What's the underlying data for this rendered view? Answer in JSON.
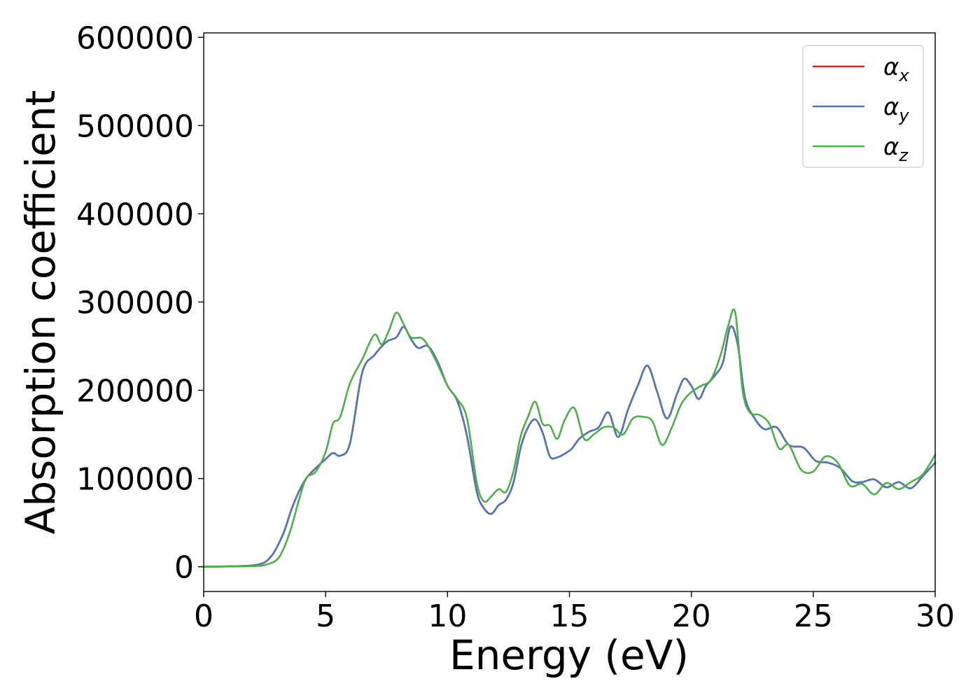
{
  "chart_data": {
    "type": "line",
    "title": "",
    "xlabel": "Energy (eV)",
    "ylabel": "Absorption coefficient",
    "xlim": [
      0,
      30
    ],
    "ylim": [
      -28000,
      605000
    ],
    "xticks": [
      0,
      5,
      10,
      15,
      20,
      25,
      30
    ],
    "xtick_labels": [
      "0",
      "5",
      "10",
      "15",
      "20",
      "25",
      "30"
    ],
    "yticks": [
      0,
      100000,
      200000,
      300000,
      400000,
      500000,
      600000
    ],
    "ytick_labels": [
      "0",
      "100000",
      "200000",
      "300000",
      "400000",
      "500000",
      "600000"
    ],
    "grid": false,
    "legend_position": "top-right",
    "series": [
      {
        "name": "αx",
        "symbol": "α",
        "subscript": "x",
        "color": "#e41a1c",
        "x": [
          0,
          1,
          2,
          2.5,
          2.8,
          3.0,
          3.3,
          3.6,
          3.9,
          4.2,
          4.6,
          5.0,
          5.3,
          5.6,
          6.0,
          6.5,
          7.0,
          7.5,
          7.9,
          8.2,
          8.5,
          8.8,
          9.2,
          9.6,
          10.0,
          10.4,
          10.8,
          11.2,
          11.5,
          11.8,
          12.1,
          12.4,
          12.7,
          13.0,
          13.3,
          13.6,
          13.9,
          14.2,
          14.5,
          14.8,
          15.1,
          15.4,
          15.8,
          16.2,
          16.6,
          17.0,
          17.4,
          17.8,
          18.2,
          18.6,
          19.0,
          19.4,
          19.7,
          20.0,
          20.3,
          20.6,
          21.0,
          21.3,
          21.6,
          21.9,
          22.2,
          22.6,
          23.0,
          23.5,
          24.0,
          24.6,
          25.1,
          25.6,
          26.1,
          26.6,
          27.0,
          27.5,
          28.0,
          28.5,
          29.0,
          29.5,
          30.0
        ],
        "y": [
          0,
          500,
          1500,
          5000,
          13000,
          22000,
          40000,
          65000,
          85000,
          100000,
          112000,
          122000,
          129000,
          126000,
          140000,
          220000,
          240000,
          255000,
          260000,
          272000,
          258000,
          248000,
          250000,
          232000,
          205000,
          188000,
          148000,
          85000,
          66000,
          60000,
          70000,
          76000,
          95000,
          135000,
          158000,
          167000,
          152000,
          125000,
          124000,
          128000,
          134000,
          145000,
          153000,
          158000,
          175000,
          147000,
          178000,
          205000,
          228000,
          198000,
          168000,
          195000,
          213000,
          205000,
          190000,
          205000,
          218000,
          232000,
          272000,
          252000,
          192000,
          168000,
          156000,
          158000,
          138000,
          135000,
          120000,
          118000,
          112000,
          97000,
          96000,
          99000,
          90000,
          96000,
          89000,
          103000,
          118000
        ]
      },
      {
        "name": "αy",
        "symbol": "α",
        "subscript": "y",
        "color": "#4a78b8",
        "x": [
          0,
          1,
          2,
          2.5,
          2.8,
          3.0,
          3.3,
          3.6,
          3.9,
          4.2,
          4.6,
          5.0,
          5.3,
          5.6,
          6.0,
          6.5,
          7.0,
          7.5,
          7.9,
          8.2,
          8.5,
          8.8,
          9.2,
          9.6,
          10.0,
          10.4,
          10.8,
          11.2,
          11.5,
          11.8,
          12.1,
          12.4,
          12.7,
          13.0,
          13.3,
          13.6,
          13.9,
          14.2,
          14.5,
          14.8,
          15.1,
          15.4,
          15.8,
          16.2,
          16.6,
          17.0,
          17.4,
          17.8,
          18.2,
          18.6,
          19.0,
          19.4,
          19.7,
          20.0,
          20.3,
          20.6,
          21.0,
          21.3,
          21.6,
          21.9,
          22.2,
          22.6,
          23.0,
          23.5,
          24.0,
          24.6,
          25.1,
          25.6,
          26.1,
          26.6,
          27.0,
          27.5,
          28.0,
          28.5,
          29.0,
          29.5,
          30.0
        ],
        "y": [
          0,
          500,
          1500,
          5000,
          13000,
          22000,
          40000,
          65000,
          85000,
          100000,
          112000,
          122000,
          129000,
          126000,
          140000,
          220000,
          240000,
          255000,
          260000,
          272000,
          258000,
          248000,
          250000,
          232000,
          205000,
          188000,
          148000,
          85000,
          66000,
          60000,
          70000,
          76000,
          95000,
          135000,
          158000,
          167000,
          152000,
          125000,
          124000,
          128000,
          134000,
          145000,
          153000,
          158000,
          175000,
          147000,
          178000,
          205000,
          228000,
          198000,
          168000,
          195000,
          213000,
          205000,
          190000,
          205000,
          218000,
          232000,
          272000,
          252000,
          192000,
          168000,
          156000,
          158000,
          138000,
          135000,
          120000,
          118000,
          112000,
          97000,
          96000,
          99000,
          90000,
          96000,
          89000,
          103000,
          118000
        ]
      },
      {
        "name": "αz",
        "symbol": "α",
        "subscript": "z",
        "color": "#4daf4a",
        "x": [
          0,
          1,
          2,
          2.5,
          3.0,
          3.3,
          3.6,
          3.9,
          4.2,
          4.6,
          5.0,
          5.3,
          5.6,
          6.0,
          6.5,
          7.0,
          7.3,
          7.6,
          7.9,
          8.2,
          8.5,
          9.0,
          9.5,
          10.0,
          10.4,
          10.8,
          11.2,
          11.5,
          11.8,
          12.1,
          12.4,
          12.7,
          13.0,
          13.3,
          13.6,
          13.9,
          14.2,
          14.5,
          14.8,
          15.2,
          15.6,
          16.0,
          16.4,
          16.8,
          17.2,
          17.6,
          18.0,
          18.4,
          18.8,
          19.2,
          19.6,
          20.0,
          20.4,
          20.8,
          21.2,
          21.5,
          21.8,
          22.1,
          22.4,
          22.8,
          23.2,
          23.6,
          24.0,
          24.5,
          25.0,
          25.5,
          26.0,
          26.5,
          27.0,
          27.5,
          28.0,
          28.5,
          29.0,
          29.5,
          30.0
        ],
        "y": [
          0,
          300,
          800,
          2000,
          8000,
          22000,
          45000,
          75000,
          100000,
          108000,
          130000,
          162000,
          170000,
          208000,
          235000,
          263000,
          252000,
          268000,
          288000,
          275000,
          260000,
          258000,
          235000,
          205000,
          190000,
          168000,
          95000,
          74000,
          80000,
          88000,
          85000,
          108000,
          148000,
          170000,
          187000,
          162000,
          160000,
          145000,
          166000,
          180000,
          145000,
          150000,
          158000,
          158000,
          150000,
          168000,
          170000,
          165000,
          138000,
          158000,
          185000,
          198000,
          205000,
          212000,
          240000,
          272000,
          288000,
          200000,
          175000,
          172000,
          162000,
          134000,
          138000,
          110000,
          108000,
          125000,
          118000,
          92000,
          94000,
          82000,
          95000,
          88000,
          96000,
          105000,
          127000
        ]
      }
    ]
  }
}
